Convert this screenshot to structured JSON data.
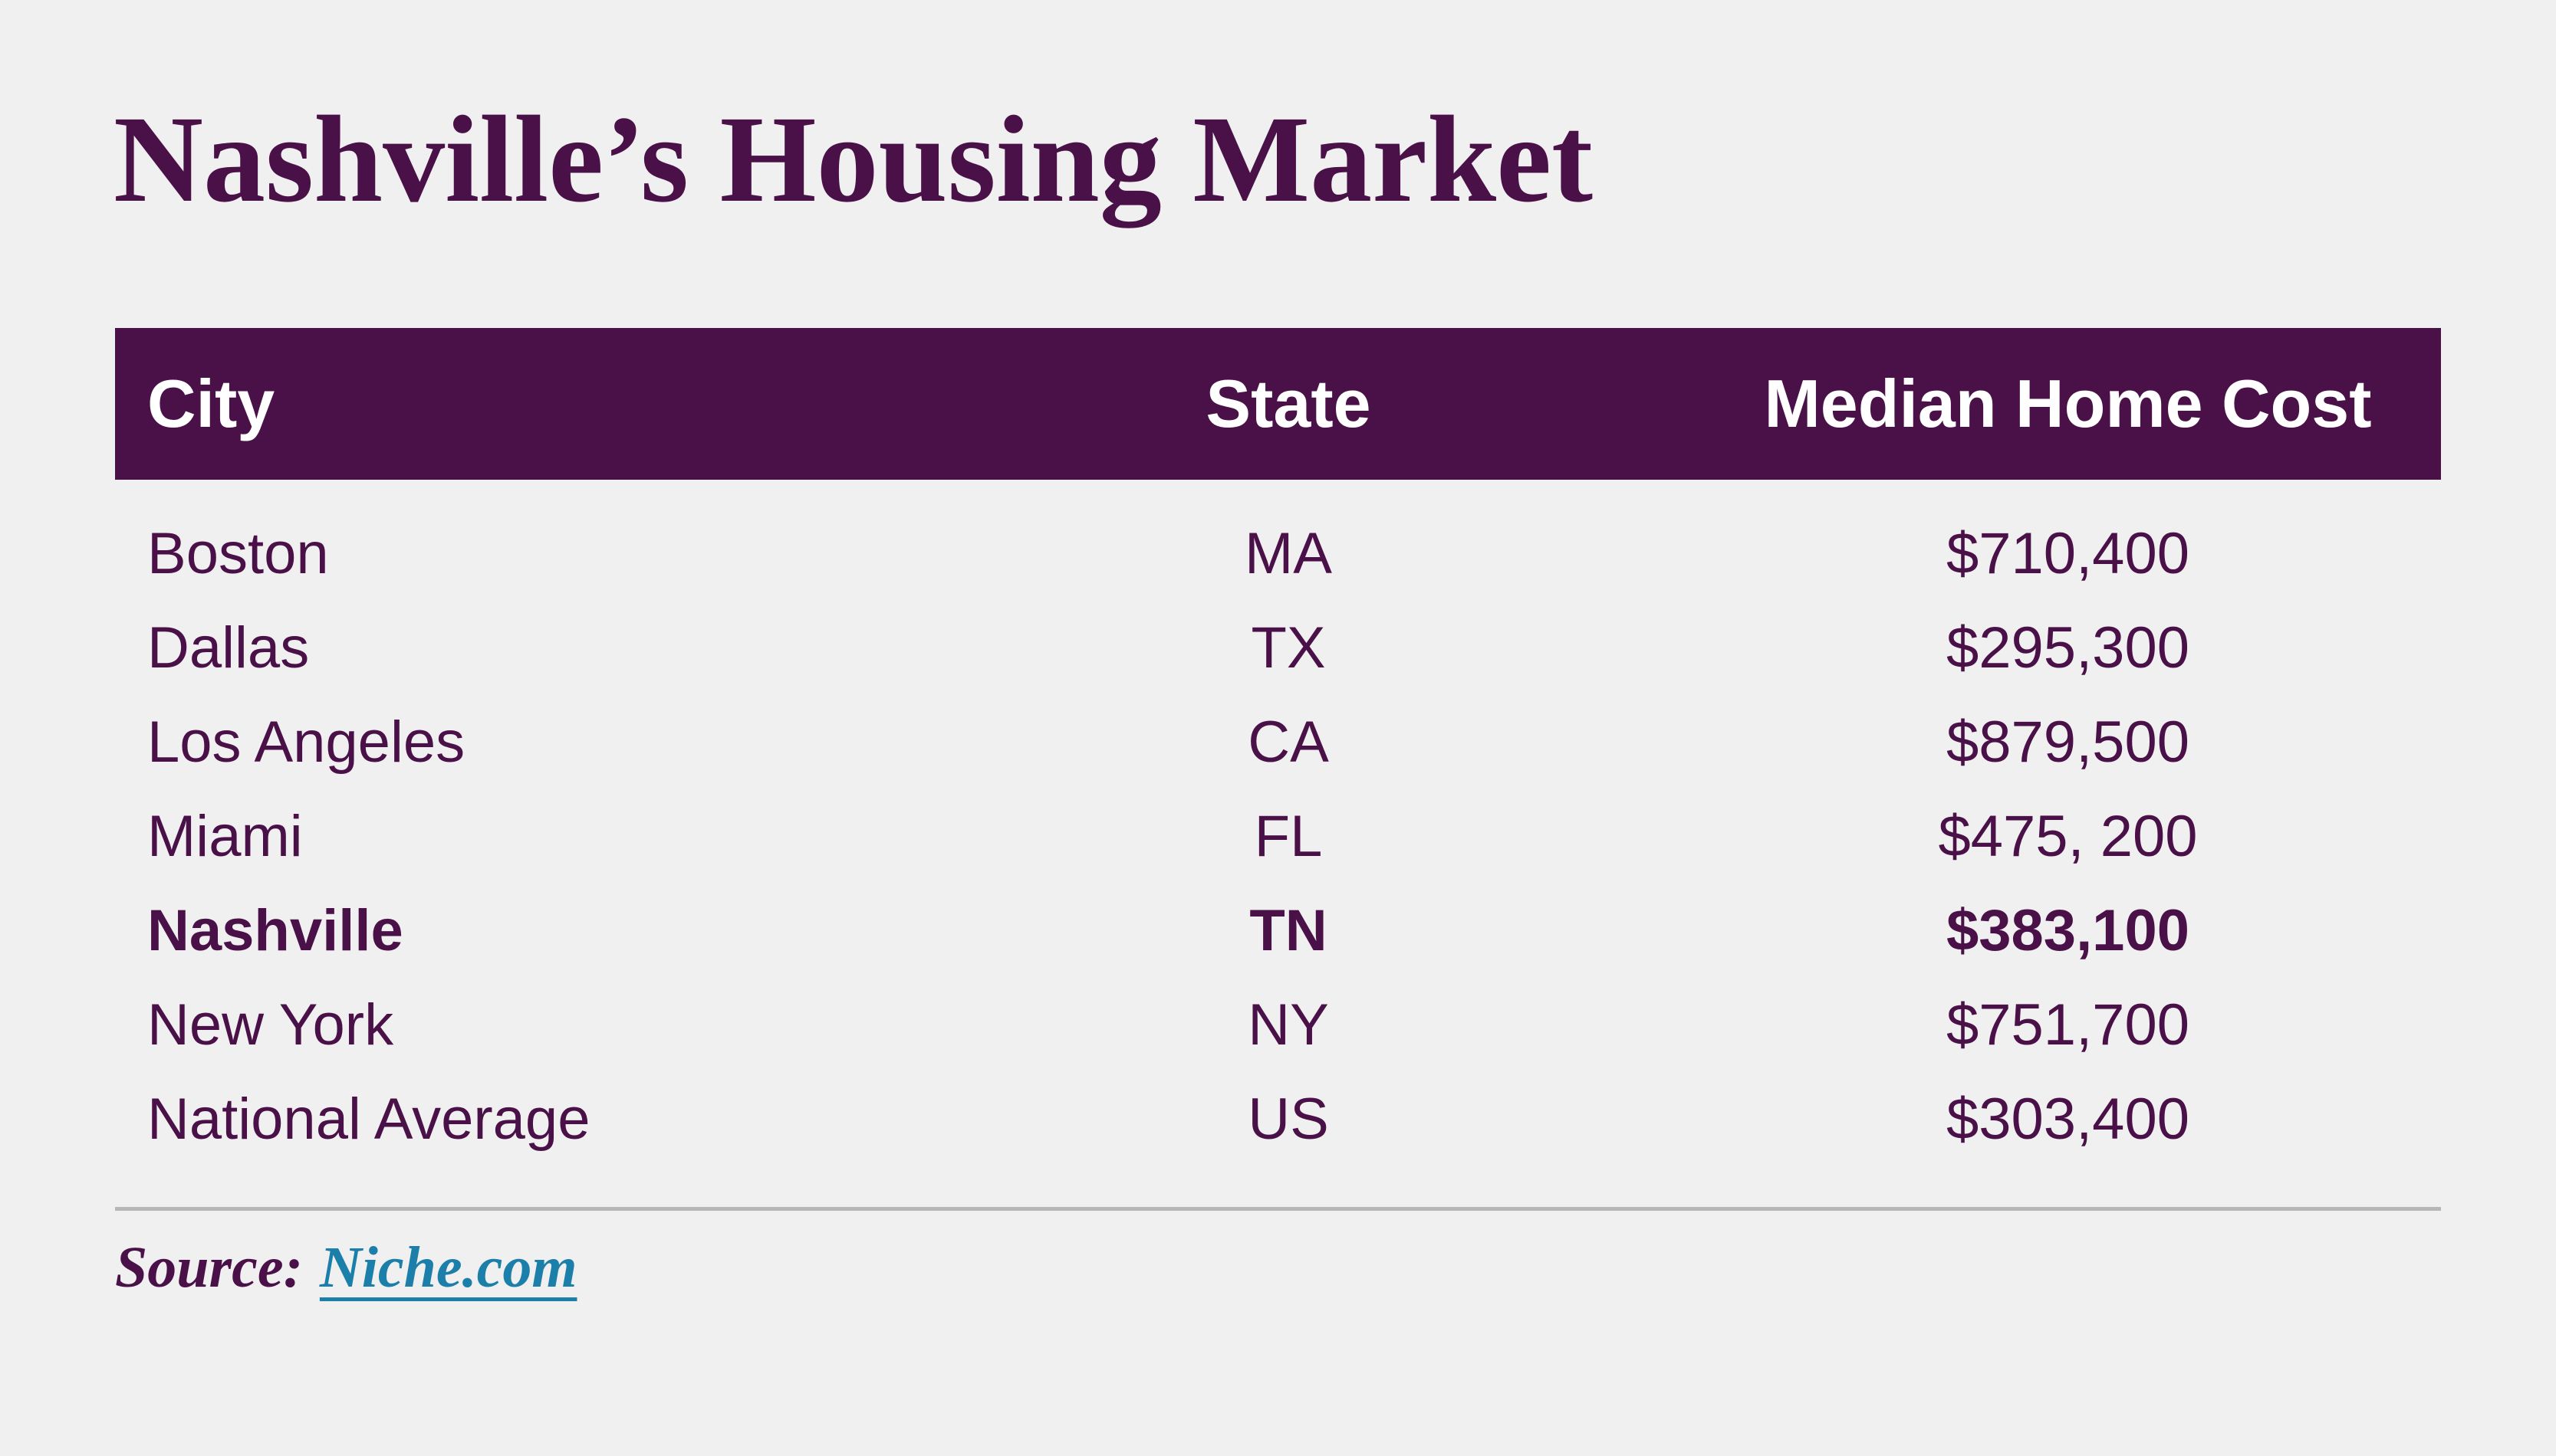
{
  "colors": {
    "purple": "#4A1148",
    "link": "#1B7FA9",
    "divider": "#B7B7B7",
    "bg": "#F0F0F0",
    "header_text": "#FFFFFF"
  },
  "chart_data": {
    "type": "table",
    "title": "Nashville’s Housing Market",
    "columns": [
      "City",
      "State",
      "Median Home Cost"
    ],
    "rows": [
      {
        "city": "Boston",
        "state": "MA",
        "cost": "$710,400",
        "cost_value": 710400
      },
      {
        "city": "Dallas",
        "state": "TX",
        "cost": "$295,300",
        "cost_value": 295300
      },
      {
        "city": "Los Angeles",
        "state": "CA",
        "cost": "$879,500",
        "cost_value": 879500
      },
      {
        "city": "Miami",
        "state": "FL",
        "cost": "$475, 200",
        "cost_value": 475200
      },
      {
        "city": "Nashville",
        "state": "TN",
        "cost": "$383,100",
        "cost_value": 383100
      },
      {
        "city": "New York",
        "state": "NY",
        "cost": "$751,700",
        "cost_value": 751700
      },
      {
        "city": "National Average",
        "state": "US",
        "cost": "$303,400",
        "cost_value": 303400
      }
    ],
    "highlighted_row": "Nashville",
    "source_label": "Source:",
    "source_link": "Niche.com"
  }
}
